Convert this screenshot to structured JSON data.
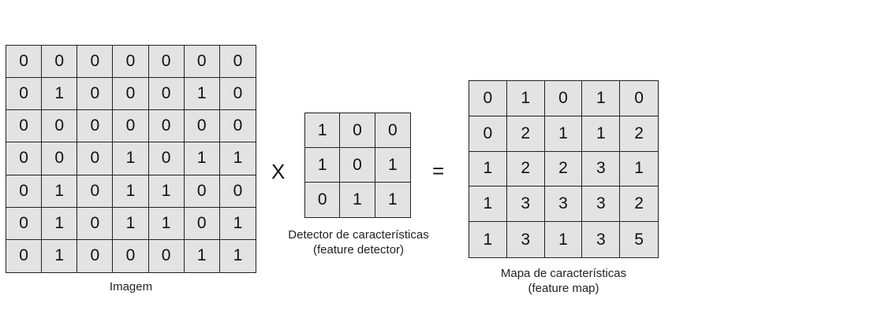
{
  "image": {
    "caption": "Imagem",
    "rows": [
      [
        0,
        0,
        0,
        0,
        0,
        0,
        0
      ],
      [
        0,
        1,
        0,
        0,
        0,
        1,
        0
      ],
      [
        0,
        0,
        0,
        0,
        0,
        0,
        0
      ],
      [
        0,
        0,
        0,
        1,
        0,
        1,
        1
      ],
      [
        0,
        1,
        0,
        1,
        1,
        0,
        0
      ],
      [
        0,
        1,
        0,
        1,
        1,
        0,
        1
      ],
      [
        0,
        1,
        0,
        0,
        0,
        1,
        1
      ]
    ]
  },
  "operator_multiply": "X",
  "detector": {
    "caption_line1": "Detector de características",
    "caption_line2": "(feature detector)",
    "rows": [
      [
        1,
        0,
        0
      ],
      [
        1,
        0,
        1
      ],
      [
        0,
        1,
        1
      ]
    ]
  },
  "operator_equals": "=",
  "feature_map": {
    "caption_line1": "Mapa de características",
    "caption_line2": "(feature map)",
    "rows": [
      [
        0,
        1,
        0,
        1,
        0
      ],
      [
        0,
        2,
        1,
        1,
        2
      ],
      [
        1,
        2,
        2,
        3,
        1
      ],
      [
        1,
        3,
        3,
        3,
        2
      ],
      [
        1,
        3,
        1,
        3,
        5
      ]
    ]
  }
}
